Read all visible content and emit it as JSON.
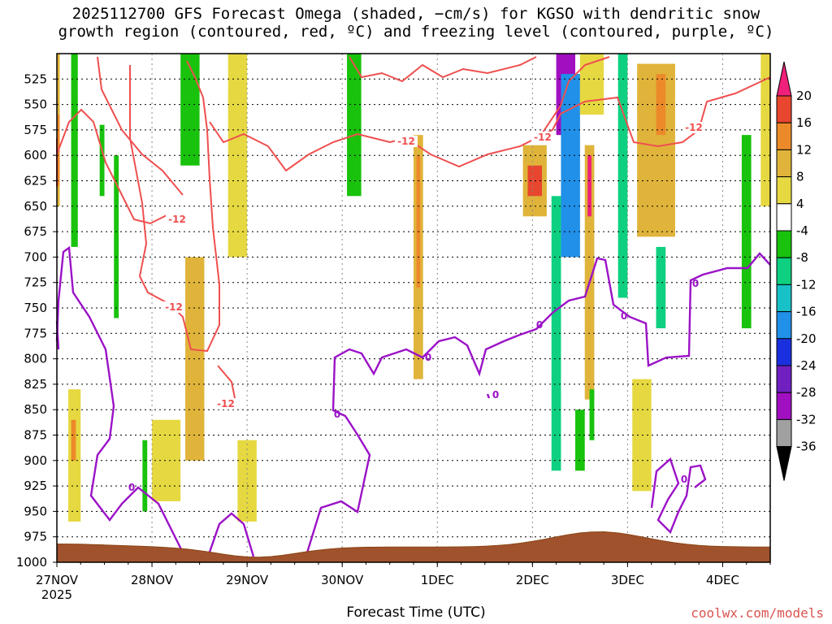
{
  "title_line1": "2025112700 GFS Forecast Omega (shaded, −cm/s) for KGSO with dendritic snow",
  "title_line2": "growth region (contoured, red, ºC) and freezing level (contoured, purple, ºC)",
  "credit": "coolwx.com/models",
  "chart_data": {
    "type": "heatmap",
    "title": "2025112700 GFS Forecast Omega (shaded, −cm/s) for KGSO with dendritic snow growth region (contoured, red, ºC) and freezing level (contoured, purple, ºC)",
    "xlabel": "Forecast Time (UTC)",
    "ylabel": "",
    "x_ticks": [
      "27NOV",
      "28NOV",
      "29NOV",
      "30NOV",
      "1DEC",
      "2DEC",
      "3DEC",
      "4DEC"
    ],
    "x_tick_year": "2025",
    "x_range_days": [
      0,
      7.5
    ],
    "y_ticks": [
      525,
      550,
      575,
      600,
      625,
      650,
      675,
      700,
      725,
      750,
      775,
      800,
      825,
      850,
      875,
      900,
      925,
      950,
      975,
      1000
    ],
    "y_range_hpa": [
      500,
      1000
    ],
    "colorbar": {
      "ticks": [
        20,
        16,
        12,
        8,
        4,
        -4,
        -8,
        -12,
        -16,
        -20,
        -24,
        -28,
        -32,
        -36
      ],
      "colors": [
        "#f0207a",
        "#e8462e",
        "#ec8a2a",
        "#e0b43a",
        "#e6d840",
        "#ffffff",
        "#19c20c",
        "#0ed080",
        "#18c0c8",
        "#2090e8",
        "#1a30e0",
        "#7020c0",
        "#a010c0",
        "#a0a0a0"
      ]
    },
    "omega_areas": [
      {
        "x": [
          0.0,
          0.03
        ],
        "p": [
          500,
          650
        ],
        "value": 6
      },
      {
        "x": [
          0.0,
          0.03
        ],
        "p": [
          560,
          630
        ],
        "value": 12
      },
      {
        "x": [
          0.15,
          0.22
        ],
        "p": [
          500,
          690
        ],
        "value": -6
      },
      {
        "x": [
          0.45,
          0.5
        ],
        "p": [
          570,
          640
        ],
        "value": -6
      },
      {
        "x": [
          0.6,
          0.65
        ],
        "p": [
          600,
          760
        ],
        "value": -6
      },
      {
        "x": [
          0.12,
          0.25
        ],
        "p": [
          830,
          960
        ],
        "value": 5
      },
      {
        "x": [
          0.15,
          0.2
        ],
        "p": [
          860,
          900
        ],
        "value": 10
      },
      {
        "x": [
          0.9,
          0.95
        ],
        "p": [
          880,
          950
        ],
        "value": -6
      },
      {
        "x": [
          1.0,
          1.3
        ],
        "p": [
          860,
          940
        ],
        "value": 5
      },
      {
        "x": [
          1.3,
          1.5
        ],
        "p": [
          500,
          610
        ],
        "value": -7
      },
      {
        "x": [
          1.35,
          1.55
        ],
        "p": [
          700,
          900
        ],
        "value": 6
      },
      {
        "x": [
          1.4,
          1.5
        ],
        "p": [
          740,
          840
        ],
        "value": 9
      },
      {
        "x": [
          1.8,
          2.0
        ],
        "p": [
          500,
          700
        ],
        "value": 5
      },
      {
        "x": [
          1.9,
          2.1
        ],
        "p": [
          880,
          960
        ],
        "value": 5
      },
      {
        "x": [
          3.05,
          3.2
        ],
        "p": [
          500,
          640
        ],
        "value": -7
      },
      {
        "x": [
          3.75,
          3.85
        ],
        "p": [
          580,
          820
        ],
        "value": 6
      },
      {
        "x": [
          3.78,
          3.82
        ],
        "p": [
          600,
          730
        ],
        "value": 12
      },
      {
        "x": [
          4.9,
          5.15
        ],
        "p": [
          590,
          660
        ],
        "value": 9
      },
      {
        "x": [
          4.95,
          5.1
        ],
        "p": [
          610,
          640
        ],
        "value": 14
      },
      {
        "x": [
          5.2,
          5.3
        ],
        "p": [
          640,
          910
        ],
        "value": -10
      },
      {
        "x": [
          5.25,
          5.45
        ],
        "p": [
          500,
          580
        ],
        "value": -28
      },
      {
        "x": [
          5.3,
          5.5
        ],
        "p": [
          520,
          700
        ],
        "value": -16
      },
      {
        "x": [
          5.45,
          5.55
        ],
        "p": [
          850,
          910
        ],
        "value": -6
      },
      {
        "x": [
          5.5,
          5.75
        ],
        "p": [
          500,
          560
        ],
        "value": 5
      },
      {
        "x": [
          5.55,
          5.65
        ],
        "p": [
          590,
          840
        ],
        "value": 9
      },
      {
        "x": [
          5.58,
          5.62
        ],
        "p": [
          600,
          660
        ],
        "value": 20
      },
      {
        "x": [
          5.6,
          5.65
        ],
        "p": [
          830,
          880
        ],
        "value": -6
      },
      {
        "x": [
          5.9,
          6.0
        ],
        "p": [
          500,
          740
        ],
        "value": -8
      },
      {
        "x": [
          6.1,
          6.5
        ],
        "p": [
          510,
          680
        ],
        "value": 7
      },
      {
        "x": [
          6.3,
          6.4
        ],
        "p": [
          520,
          580
        ],
        "value": 12
      },
      {
        "x": [
          6.05,
          6.25
        ],
        "p": [
          820,
          930
        ],
        "value": 5
      },
      {
        "x": [
          6.3,
          6.4
        ],
        "p": [
          690,
          770
        ],
        "value": -8
      },
      {
        "x": [
          7.2,
          7.3
        ],
        "p": [
          580,
          770
        ],
        "value": -7
      },
      {
        "x": [
          7.4,
          7.5
        ],
        "p": [
          500,
          650
        ],
        "value": 5
      }
    ],
    "contours": [
      {
        "name": "-12",
        "color": "#ef4f4f",
        "labels": [
          "-12",
          "-12",
          "-12",
          "-12",
          "-12",
          "-12"
        ]
      },
      {
        "name": "0",
        "color": "#9b12c7",
        "labels": [
          "0",
          "0",
          "0",
          "0",
          "0",
          "0",
          "0",
          "0"
        ]
      }
    ],
    "terrain_hpa": {
      "base": 985,
      "peak": 970,
      "peak_day": 5.7
    }
  }
}
